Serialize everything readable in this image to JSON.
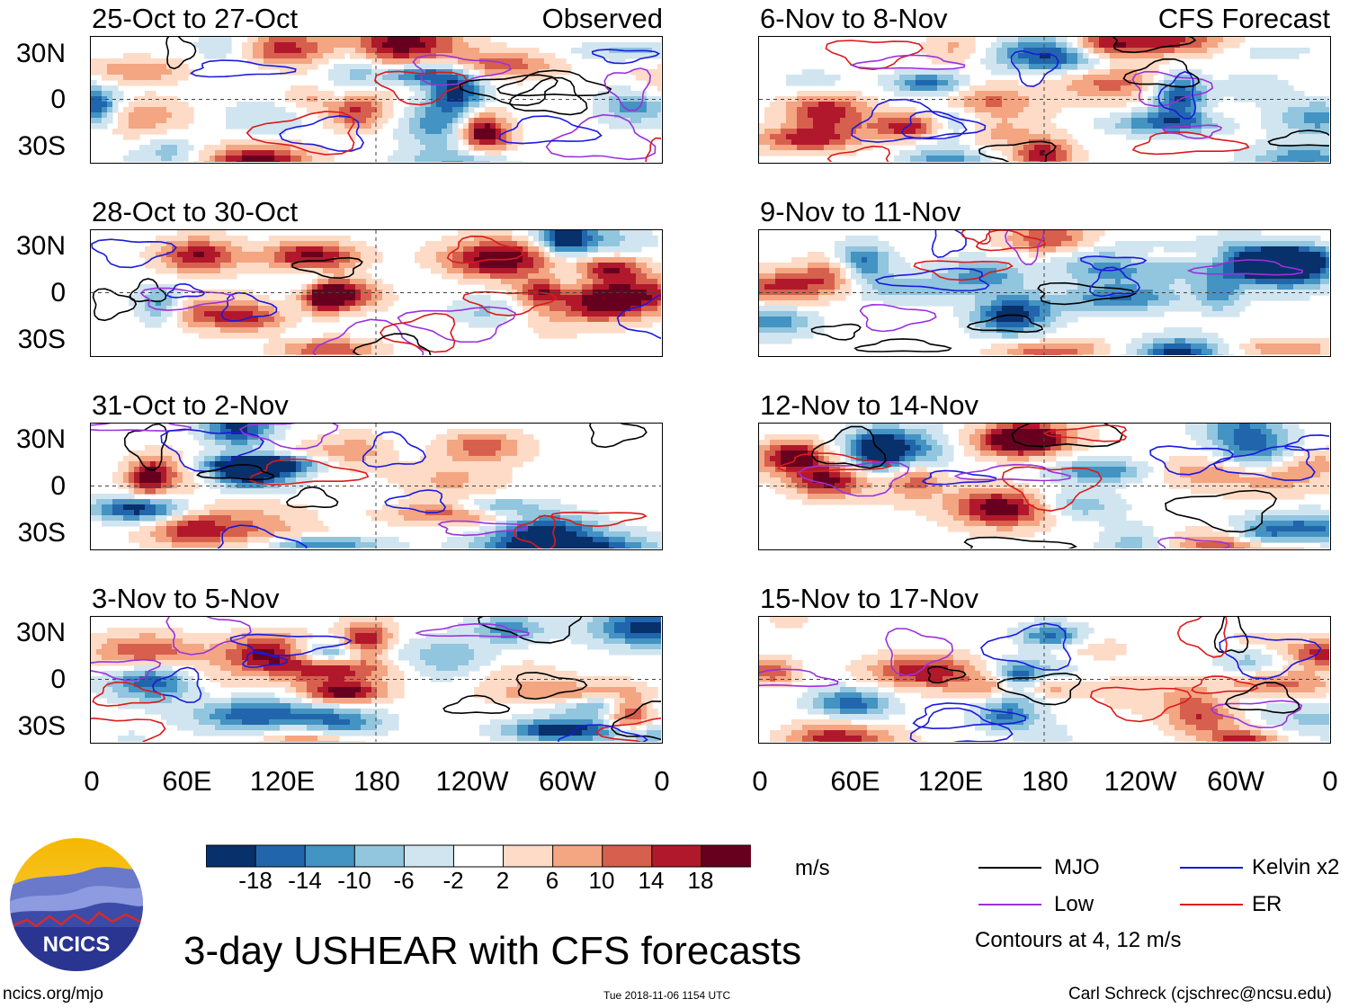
{
  "figure": {
    "main_title": "3-day USHEAR with CFS forecasts",
    "left_tag": "Observed",
    "right_tag": "CFS Forecast",
    "units": "m/s",
    "contour_note": "Contours at 4, 12 m/s",
    "logo_text": "NCICS",
    "site": "ncics.org/mjo",
    "timestamp": "Tue 2018-11-06 1154 UTC",
    "author": "Carl Schreck (cjschrec@ncsu.edu)"
  },
  "legend": [
    {
      "label": "MJO",
      "color": "#000000"
    },
    {
      "label": "Kelvin x2",
      "color": "#1a1adc"
    },
    {
      "label": "Low",
      "color": "#9a32dc"
    },
    {
      "label": "ER",
      "color": "#dc1a1a"
    }
  ],
  "colors": {
    "colorbar": [
      "#08306b",
      "#2166ac",
      "#4393c3",
      "#92c5de",
      "#d1e5f0",
      "#ffffff",
      "#fddbc7",
      "#f4a582",
      "#d6604d",
      "#b2182b",
      "#67001f"
    ]
  },
  "chart_data": {
    "type": "heatmap",
    "variable": "3-day USHEAR",
    "units": "m/s",
    "colorbar_ticks": [
      "-18",
      "-14",
      "-10",
      "-6",
      "-2",
      "2",
      "6",
      "10",
      "14",
      "18"
    ],
    "colorbar_values": [
      -18,
      -14,
      -10,
      -6,
      -2,
      2,
      6,
      10,
      14,
      18
    ],
    "y_ticks": [
      "30N",
      "0",
      "30S"
    ],
    "y_range": [
      -40,
      40
    ],
    "x_ticks": [
      "0",
      "60E",
      "120E",
      "180",
      "120W",
      "60W",
      "0"
    ],
    "x_range": [
      0,
      360
    ],
    "contour_levels_ms": [
      4,
      12
    ],
    "panels": [
      {
        "id": "p1",
        "title": "25-Oct to 27-Oct",
        "source": "Observed"
      },
      {
        "id": "p2",
        "title": "28-Oct to 30-Oct",
        "source": "Observed"
      },
      {
        "id": "p3",
        "title": "31-Oct to 2-Nov",
        "source": "Observed"
      },
      {
        "id": "p4",
        "title": "3-Nov to 5-Nov",
        "source": "Observed"
      },
      {
        "id": "p5",
        "title": "6-Nov to 8-Nov",
        "source": "CFS Forecast"
      },
      {
        "id": "p6",
        "title": "9-Nov to 11-Nov",
        "source": "CFS Forecast"
      },
      {
        "id": "p7",
        "title": "12-Nov to 14-Nov",
        "source": "CFS Forecast"
      },
      {
        "id": "p8",
        "title": "15-Nov to 17-Nov",
        "source": "CFS Forecast"
      }
    ]
  }
}
